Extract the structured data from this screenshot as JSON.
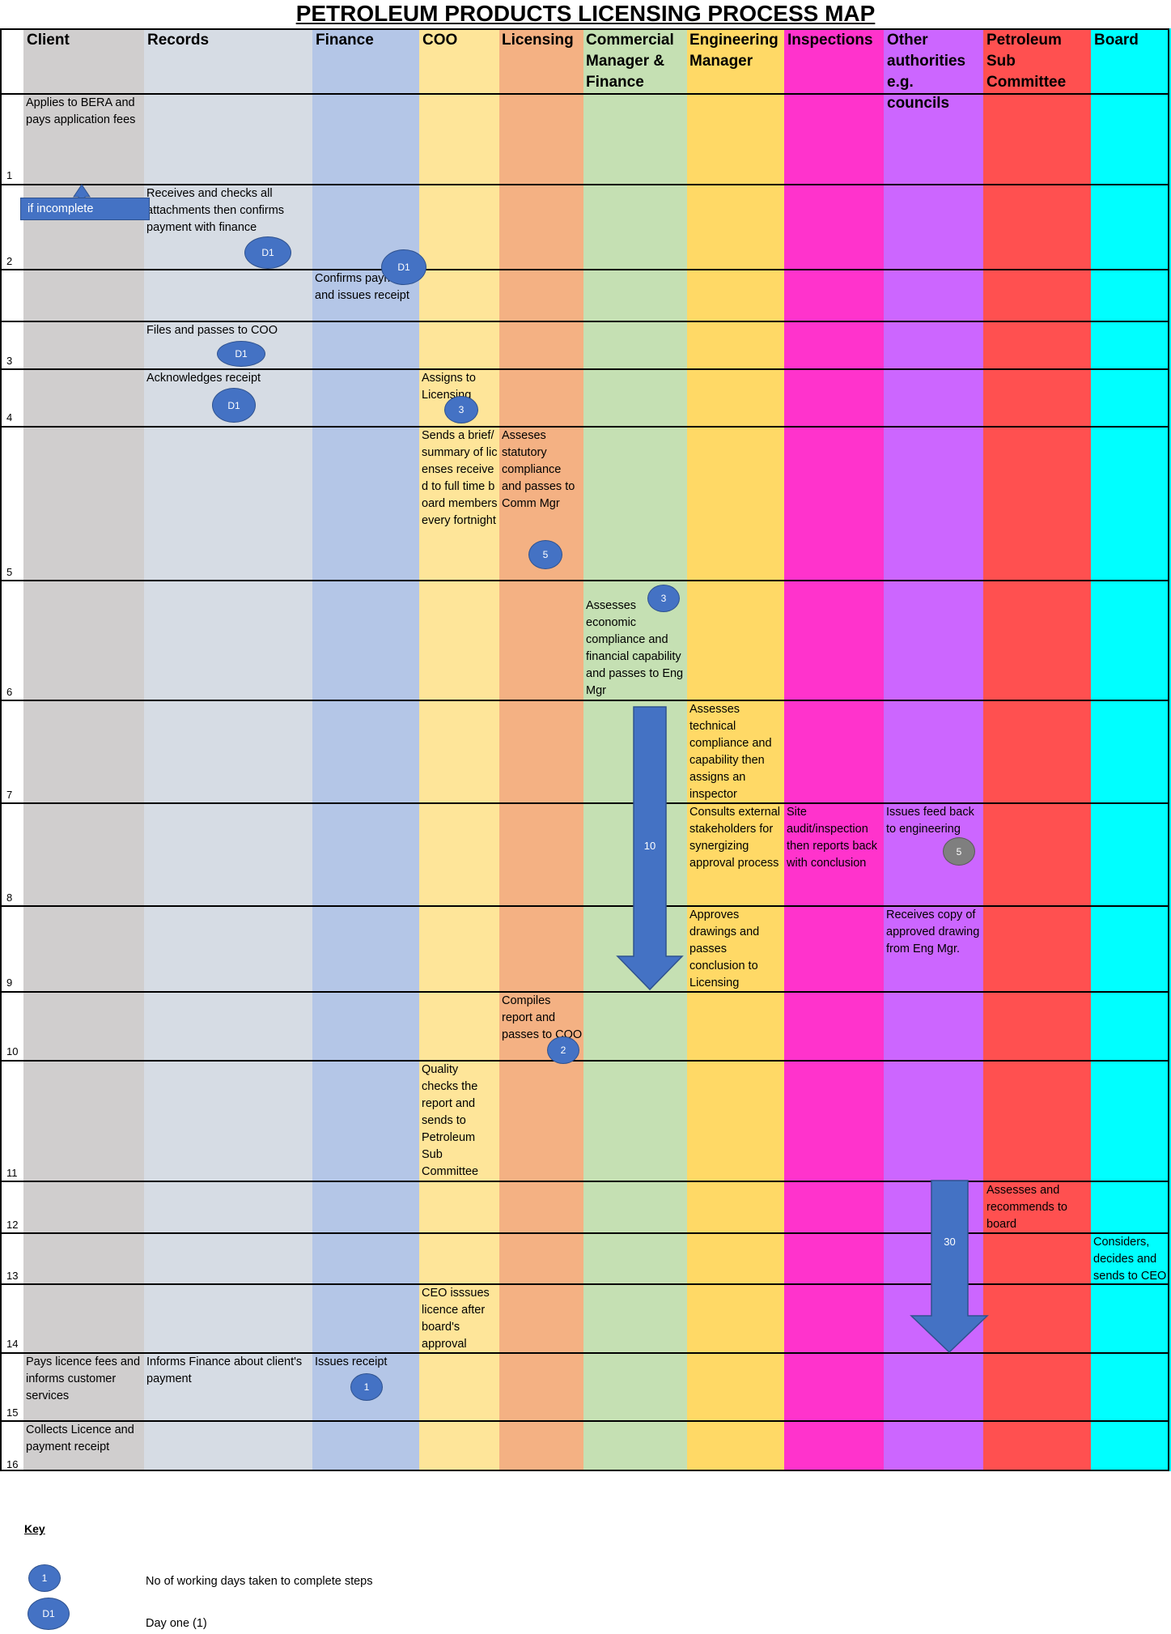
{
  "title": "PETROLEUM PRODUCTS LICENSING PROCESS MAP",
  "lanes": [
    {
      "name": "Client",
      "color": "#d0cece"
    },
    {
      "name": "Records",
      "color": "#d6dce4"
    },
    {
      "name": "Finance",
      "color": "#b4c6e7"
    },
    {
      "name": "COO",
      "color": "#fee599"
    },
    {
      "name": "Licensing",
      "color": "#f4b183"
    },
    {
      "name": "Commercial Manager & Finance",
      "color": "#c5e0b3"
    },
    {
      "name": "Engineering Manager",
      "color": "#ffd966"
    },
    {
      "name": "Inspections",
      "color": "#ff33cc"
    },
    {
      "name": "Other authorities e.g. councils",
      "color": "#cc66ff"
    },
    {
      "name": "Petroleum Sub Committee",
      "color": "#ff5050"
    },
    {
      "name": "Board",
      "color": "#00ffff"
    }
  ],
  "step_numbers": [
    "1",
    "2",
    "3",
    "4",
    "5",
    "6",
    "7",
    "8",
    "9",
    "10",
    "11",
    "12",
    "13",
    "14",
    "15",
    "16"
  ],
  "steps": {
    "s1_client": "Applies to BERA and pays application fees",
    "s1_incomplete": "if incomplete",
    "s2_records": "Receives and checks all attachments then confirms payment with finance",
    "s2_finance": "Confirms payment and issues receipt",
    "s3_records": "Files and passes to COO",
    "s4_records": "Acknowledges receipt",
    "s4_coo": "Assigns to Licensing",
    "s5_coo": "Sends a brief/summary of licenses received to full time board members every fortnight",
    "s5_licensing": "Asseses statutory compliance and passes to Comm Mgr",
    "s6_commercial": "Assesses economic compliance and financial capability and passes to Eng Mgr",
    "s7_engineering": "Assesses technical compliance and capability then assigns an inspector",
    "s8_engineering": "Consults external stakeholders for synergizing approval process",
    "s8_inspections": "Site audit/inspection then reports back with conclusion",
    "s8_other": "Issues feed back to engineering",
    "s9_engineering": "Approves drawings and passes conclusion to Licensing",
    "s9_other": "Receives copy of approved drawing from Eng Mgr.",
    "s10_licensing": "Compiles report and passes to COO",
    "s11_coo": "Quality checks the report and sends to Petroleum Sub Committee",
    "s12_subcommittee": "Assesses and recommends to board",
    "s13_board": "Considers, decides and sends to CEO",
    "s14_coo": "CEO isssues licence after board's approval",
    "s15_client": "Pays licence fees and informs customer services",
    "s15_records": "Informs Finance about client's payment",
    "s15_finance": "Issues receipt",
    "s16_client": "Collects Licence and payment receipt"
  },
  "ovals": {
    "d1": "D1",
    "three": "3",
    "five": "5",
    "two": "2",
    "one": "1"
  },
  "arrows": {
    "commercial_days": "10",
    "other_days": "30"
  },
  "key": {
    "title": "Key",
    "oval_number": "1",
    "oval_d1": "D1",
    "label_days": "No of working days taken to complete steps",
    "label_day_one": "Day one (1)"
  }
}
